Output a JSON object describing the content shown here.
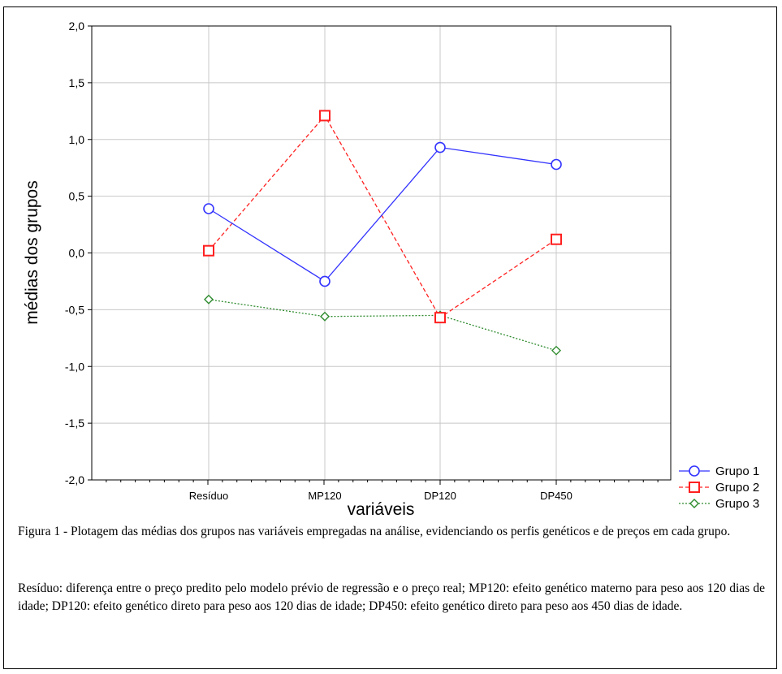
{
  "chart_data": {
    "type": "line",
    "categories": [
      "Resíduo",
      "MP120",
      "DP120",
      "DP450"
    ],
    "xlabel": "variáveis",
    "ylabel": "médias dos grupos",
    "ylim": [
      -2.0,
      2.0
    ],
    "yticks": [
      "2,0",
      "1,5",
      "1,0",
      "0,5",
      "0,0",
      "-0,5",
      "-1,0",
      "-1,5",
      "-2,0"
    ],
    "grid": true,
    "legend_position": "bottom-right outside",
    "series": [
      {
        "name": "Grupo 1",
        "values": [
          0.39,
          -0.25,
          0.93,
          0.78
        ],
        "color": "#3333ff",
        "marker": "circle",
        "dash": "solid"
      },
      {
        "name": "Grupo 2",
        "values": [
          0.02,
          1.21,
          -0.57,
          0.12
        ],
        "color": "#ff2020",
        "marker": "square",
        "dash": "dashed"
      },
      {
        "name": "Grupo 3",
        "values": [
          -0.41,
          -0.56,
          -0.55,
          -0.86
        ],
        "color": "#2e8b2e",
        "marker": "diamond",
        "dash": "dotted"
      }
    ]
  },
  "caption": {
    "title": "Figura 1 - Plotagem das médias dos grupos nas variáveis empregadas na análise, evidenciando os perfis genéticos e de preços em cada grupo.",
    "note": "Resíduo: diferença entre o preço predito pelo modelo prévio de regressão e o preço real; MP120: efeito genético materno para peso aos 120 dias de idade; DP120: efeito genético direto para peso aos 120 dias de idade; DP450: efeito genético direto para peso aos 450 dias de idade."
  }
}
